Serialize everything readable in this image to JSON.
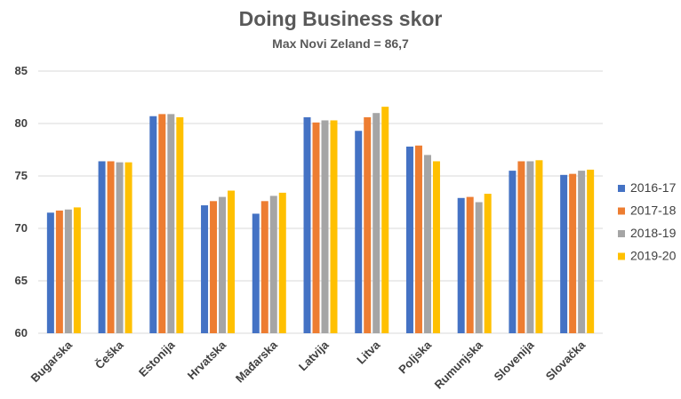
{
  "chart_data": {
    "type": "bar",
    "title": "Doing Business skor",
    "subtitle": "Max Novi Zeland = 86,7",
    "xlabel": "",
    "ylabel": "",
    "ylim": [
      60,
      85
    ],
    "yticks": [
      "60",
      "65",
      "70",
      "75",
      "80",
      "85"
    ],
    "grid": true,
    "legend_position": "right",
    "categories": [
      "Bugarska",
      "Češka",
      "Estonija",
      "Hrvatska",
      "Mađarska",
      "Latvija",
      "Litva",
      "Poljska",
      "Rumunjska",
      "Slovenija",
      "Slovačka"
    ],
    "series": [
      {
        "name": "2016-17",
        "color": "#4472C4",
        "values": [
          71.5,
          76.4,
          80.7,
          72.2,
          71.4,
          80.6,
          79.3,
          77.8,
          72.9,
          75.5,
          75.1
        ]
      },
      {
        "name": "2017-18",
        "color": "#ED7D31",
        "values": [
          71.7,
          76.4,
          80.9,
          72.6,
          72.6,
          80.1,
          80.6,
          77.9,
          73.0,
          76.4,
          75.2
        ]
      },
      {
        "name": "2018-19",
        "color": "#A5A5A5",
        "values": [
          71.8,
          76.3,
          80.9,
          73.0,
          73.1,
          80.3,
          81.0,
          77.0,
          72.5,
          76.4,
          75.5
        ]
      },
      {
        "name": "2019-20",
        "color": "#FFC000",
        "values": [
          72.0,
          76.3,
          80.6,
          73.6,
          73.4,
          80.3,
          81.6,
          76.4,
          73.3,
          76.5,
          75.6
        ]
      }
    ]
  }
}
